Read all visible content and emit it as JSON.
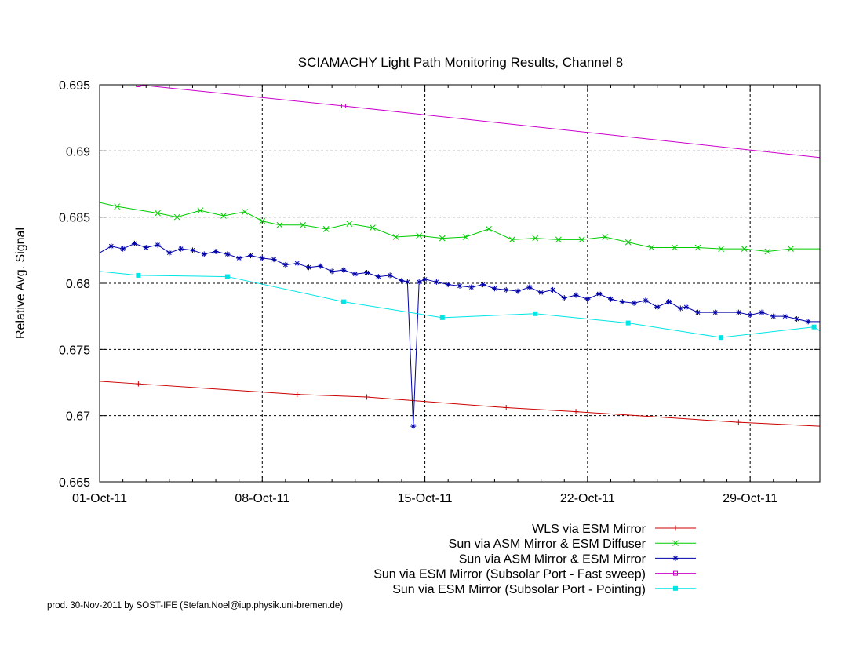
{
  "chart_data": {
    "type": "line",
    "title": "SCIAMACHY Light Path Monitoring Results, Channel 8",
    "xlabel": "",
    "ylabel": "Relative Avg. Signal",
    "x_unit": "date",
    "xlim": [
      "2011-10-01",
      "2011-11-01"
    ],
    "ylim": [
      0.665,
      0.695
    ],
    "x_ticks": [
      {
        "date": "2011-10-01",
        "label": "01-Oct-11"
      },
      {
        "date": "2011-10-08",
        "label": "08-Oct-11"
      },
      {
        "date": "2011-10-15",
        "label": "15-Oct-11"
      },
      {
        "date": "2011-10-22",
        "label": "22-Oct-11"
      },
      {
        "date": "2011-10-29",
        "label": "29-Oct-11"
      }
    ],
    "y_ticks": [
      "0.665",
      "0.67",
      "0.675",
      "0.68",
      "0.685",
      "0.69",
      "0.695"
    ],
    "y_tick_values": [
      0.665,
      0.67,
      0.675,
      0.68,
      0.685,
      0.69,
      0.695
    ],
    "grid": true,
    "legend_position": "bottom-right",
    "series": [
      {
        "name": "WLS via ESM Mirror",
        "color": "#cc0000",
        "marker": "plus",
        "x": [
          "2011-10-01",
          "2011-10-02 16:00",
          "2011-10-09 12:00",
          "2011-10-12 12:00",
          "2011-10-18 12:00",
          "2011-10-21 12:00",
          "2011-10-28 12:00",
          "2011-11-01"
        ],
        "y": [
          0.6726,
          0.6724,
          0.6716,
          0.6714,
          0.6706,
          0.6703,
          0.6695,
          0.6692
        ]
      },
      {
        "name": "Sun via ASM Mirror & ESM Diffuser",
        "color": "#00cc00",
        "marker": "x",
        "x": [
          "2011-10-01",
          "2011-10-01 18:00",
          "2011-10-03 12:00",
          "2011-10-04 08:00",
          "2011-10-05 08:00",
          "2011-10-06 08:00",
          "2011-10-07 06:00",
          "2011-10-08 00:00",
          "2011-10-08 18:00",
          "2011-10-09 18:00",
          "2011-10-10 18:00",
          "2011-10-11 18:00",
          "2011-10-12 18:00",
          "2011-10-13 18:00",
          "2011-10-14 18:00",
          "2011-10-15 18:00",
          "2011-10-16 18:00",
          "2011-10-17 18:00",
          "2011-10-18 18:00",
          "2011-10-19 18:00",
          "2011-10-20 18:00",
          "2011-10-21 18:00",
          "2011-10-22 18:00",
          "2011-10-23 18:00",
          "2011-10-24 18:00",
          "2011-10-25 18:00",
          "2011-10-26 18:00",
          "2011-10-27 18:00",
          "2011-10-28 18:00",
          "2011-10-29 18:00",
          "2011-10-30 18:00",
          "2011-11-01"
        ],
        "y": [
          0.6861,
          0.6858,
          0.6853,
          0.685,
          0.6855,
          0.6851,
          0.6854,
          0.6847,
          0.6844,
          0.6844,
          0.6841,
          0.6845,
          0.6842,
          0.6835,
          0.6836,
          0.6834,
          0.6835,
          0.6841,
          0.6833,
          0.6834,
          0.6833,
          0.6833,
          0.6835,
          0.6831,
          0.6827,
          0.6827,
          0.6827,
          0.6826,
          0.6826,
          0.6824,
          0.6826,
          0.6826
        ]
      },
      {
        "name": "Sun via ASM Mirror & ESM Mirror",
        "color": "#0000aa",
        "marker": "star",
        "x": [
          "2011-10-01",
          "2011-10-01 12:00",
          "2011-10-02",
          "2011-10-02 12:00",
          "2011-10-03",
          "2011-10-03 12:00",
          "2011-10-04",
          "2011-10-04 12:00",
          "2011-10-05",
          "2011-10-05 12:00",
          "2011-10-06",
          "2011-10-06 12:00",
          "2011-10-07",
          "2011-10-07 12:00",
          "2011-10-08",
          "2011-10-08 12:00",
          "2011-10-09",
          "2011-10-09 12:00",
          "2011-10-10",
          "2011-10-10 12:00",
          "2011-10-11",
          "2011-10-11 12:00",
          "2011-10-12",
          "2011-10-12 12:00",
          "2011-10-13",
          "2011-10-13 12:00",
          "2011-10-14",
          "2011-10-14 06:00",
          "2011-10-14 12:00",
          "2011-10-14 18:00",
          "2011-10-15",
          "2011-10-15 12:00",
          "2011-10-16",
          "2011-10-16 12:00",
          "2011-10-17",
          "2011-10-17 12:00",
          "2011-10-18",
          "2011-10-18 12:00",
          "2011-10-19",
          "2011-10-19 12:00",
          "2011-10-20",
          "2011-10-20 12:00",
          "2011-10-21",
          "2011-10-21 12:00",
          "2011-10-22",
          "2011-10-22 12:00",
          "2011-10-23",
          "2011-10-23 12:00",
          "2011-10-24",
          "2011-10-24 12:00",
          "2011-10-25",
          "2011-10-25 12:00",
          "2011-10-26",
          "2011-10-26 06:00",
          "2011-10-26 18:00",
          "2011-10-27 12:00",
          "2011-10-28 12:00",
          "2011-10-29",
          "2011-10-29 12:00",
          "2011-10-30",
          "2011-10-30 12:00",
          "2011-10-31",
          "2011-10-31 12:00",
          "2011-11-01"
        ],
        "y": [
          0.6823,
          0.6828,
          0.6826,
          0.683,
          0.6827,
          0.6829,
          0.6823,
          0.6826,
          0.6825,
          0.6822,
          0.6824,
          0.6822,
          0.6819,
          0.6821,
          0.6819,
          0.6818,
          0.6814,
          0.6815,
          0.6812,
          0.6813,
          0.6809,
          0.681,
          0.6807,
          0.6808,
          0.6805,
          0.6806,
          0.6802,
          0.6801,
          0.6692,
          0.6801,
          0.6803,
          0.6801,
          0.6799,
          0.6798,
          0.6797,
          0.6799,
          0.6796,
          0.6795,
          0.6794,
          0.6797,
          0.6793,
          0.6795,
          0.6789,
          0.6791,
          0.6788,
          0.6792,
          0.6788,
          0.6786,
          0.6785,
          0.6787,
          0.6782,
          0.6786,
          0.6781,
          0.6782,
          0.6778,
          0.6778,
          0.6778,
          0.6776,
          0.6778,
          0.6775,
          0.6775,
          0.6773,
          0.6771,
          0.6771
        ]
      },
      {
        "name": "Sun via ESM Mirror (Subsolar Port - Fast sweep)",
        "color": "#cc00cc",
        "marker": "square",
        "x": [
          "2011-10-02 16:00",
          "2011-10-11 12:00",
          "2011-11-01"
        ],
        "y": [
          0.695,
          0.6934,
          0.6895
        ]
      },
      {
        "name": "Sun via ESM Mirror (Subsolar Port - Pointing)",
        "color": "#00e5e5",
        "marker": "filled-square",
        "x": [
          "2011-10-01",
          "2011-10-02 16:00",
          "2011-10-06 12:00",
          "2011-10-11 12:00",
          "2011-10-15 18:00",
          "2011-10-19 18:00",
          "2011-10-23 18:00",
          "2011-10-27 18:00",
          "2011-10-31 18:00",
          "2011-11-01"
        ],
        "y": [
          0.6809,
          0.6806,
          0.6805,
          0.6786,
          0.6774,
          0.6777,
          0.677,
          0.6759,
          0.6767,
          0.6764
        ]
      }
    ]
  },
  "footer": "prod. 30-Nov-2011 by SOST-IFE (Stefan.Noel@iup.physik.uni-bremen.de)"
}
